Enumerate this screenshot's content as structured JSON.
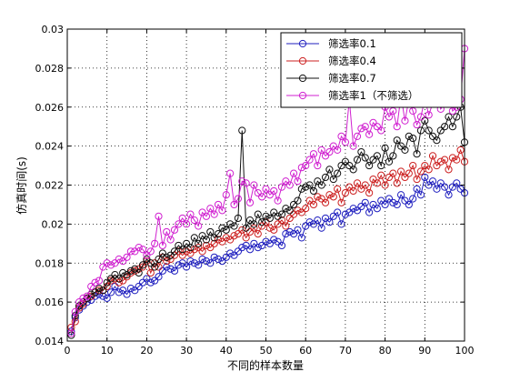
{
  "chart_data": {
    "type": "line",
    "title": "",
    "xlabel": "不同的样本数量",
    "ylabel": "仿真时间(s)",
    "xlim": [
      0,
      100
    ],
    "ylim": [
      0.014,
      0.03
    ],
    "xticks": [
      "0",
      "10",
      "20",
      "30",
      "40",
      "50",
      "60",
      "70",
      "80",
      "90",
      "100"
    ],
    "yticks": [
      "0.014",
      "0.016",
      "0.018",
      "0.02",
      "0.022",
      "0.024",
      "0.026",
      "0.028",
      "0.03"
    ],
    "grid": true,
    "legend_position": "top-right",
    "marker": "open-circle",
    "series": [
      {
        "name": "筛选率0.1",
        "color": "#1f1fbf",
        "values": [
          0.0145,
          0.0152,
          0.0156,
          0.0158,
          0.016,
          0.0161,
          0.0163,
          0.0164,
          0.0163,
          0.0162,
          0.0165,
          0.0168,
          0.0165,
          0.0166,
          0.0164,
          0.0167,
          0.0166,
          0.0168,
          0.017,
          0.0172,
          0.017,
          0.0171,
          0.0173,
          0.0176,
          0.0178,
          0.0177,
          0.0176,
          0.0179,
          0.018,
          0.0178,
          0.0181,
          0.018,
          0.0179,
          0.0182,
          0.0181,
          0.018,
          0.0183,
          0.0182,
          0.0181,
          0.0183,
          0.0185,
          0.0184,
          0.0186,
          0.0188,
          0.0189,
          0.0187,
          0.019,
          0.0188,
          0.0189,
          0.0191,
          0.019,
          0.0192,
          0.0191,
          0.0189,
          0.0195,
          0.0196,
          0.0195,
          0.0197,
          0.0193,
          0.0199,
          0.0201,
          0.02,
          0.0202,
          0.0198,
          0.0203,
          0.0201,
          0.0204,
          0.0206,
          0.02,
          0.0205,
          0.0206,
          0.0208,
          0.0207,
          0.0209,
          0.0211,
          0.0206,
          0.021,
          0.0208,
          0.0212,
          0.021,
          0.0213,
          0.0211,
          0.021,
          0.0215,
          0.0212,
          0.021,
          0.0213,
          0.0218,
          0.0215,
          0.0224,
          0.022,
          0.0222,
          0.0218,
          0.0221,
          0.0219,
          0.0215,
          0.0219,
          0.0221,
          0.0218,
          0.0216
        ]
      },
      {
        "name": "筛选率0.4",
        "color": "#cc2020",
        "values": [
          0.0147,
          0.015,
          0.0157,
          0.0159,
          0.0162,
          0.0163,
          0.0165,
          0.0166,
          0.0166,
          0.0168,
          0.0171,
          0.0172,
          0.017,
          0.0171,
          0.0173,
          0.0175,
          0.0176,
          0.0177,
          0.0178,
          0.0181,
          0.0175,
          0.018,
          0.0178,
          0.0183,
          0.0181,
          0.0182,
          0.0184,
          0.0186,
          0.0184,
          0.0186,
          0.0185,
          0.0187,
          0.0188,
          0.0186,
          0.0189,
          0.0188,
          0.019,
          0.0192,
          0.0191,
          0.0193,
          0.0192,
          0.0194,
          0.0195,
          0.0197,
          0.0193,
          0.0196,
          0.0198,
          0.0195,
          0.0199,
          0.0201,
          0.0198,
          0.0197,
          0.02,
          0.0202,
          0.0199,
          0.0203,
          0.0205,
          0.0207,
          0.0206,
          0.0208,
          0.0212,
          0.021,
          0.0214,
          0.0213,
          0.0211,
          0.0215,
          0.0214,
          0.0218,
          0.0211,
          0.0216,
          0.0219,
          0.0217,
          0.0221,
          0.0218,
          0.022,
          0.0216,
          0.0223,
          0.0221,
          0.0225,
          0.022,
          0.0224,
          0.0226,
          0.0221,
          0.0227,
          0.0224,
          0.0226,
          0.023,
          0.0223,
          0.0227,
          0.023,
          0.0228,
          0.0235,
          0.023,
          0.0232,
          0.0233,
          0.0228,
          0.0234,
          0.0233,
          0.0238,
          0.0232
        ]
      },
      {
        "name": "筛选率0.7",
        "color": "#111111",
        "values": [
          0.0143,
          0.0153,
          0.0158,
          0.016,
          0.0162,
          0.0164,
          0.0165,
          0.0167,
          0.0166,
          0.017,
          0.0172,
          0.0174,
          0.0172,
          0.0175,
          0.0174,
          0.0176,
          0.0177,
          0.0175,
          0.0179,
          0.0182,
          0.018,
          0.0178,
          0.0182,
          0.0185,
          0.0183,
          0.0184,
          0.0186,
          0.0189,
          0.0187,
          0.019,
          0.0188,
          0.0193,
          0.019,
          0.0194,
          0.0192,
          0.0196,
          0.0193,
          0.0195,
          0.0198,
          0.0197,
          0.02,
          0.0199,
          0.0203,
          0.0248,
          0.0198,
          0.0202,
          0.02,
          0.0205,
          0.0201,
          0.0204,
          0.0203,
          0.0206,
          0.0204,
          0.0205,
          0.0208,
          0.0207,
          0.021,
          0.0212,
          0.0218,
          0.0219,
          0.022,
          0.0217,
          0.0222,
          0.022,
          0.0224,
          0.0228,
          0.0223,
          0.0226,
          0.023,
          0.0232,
          0.023,
          0.0228,
          0.0233,
          0.0237,
          0.0234,
          0.023,
          0.0233,
          0.0235,
          0.023,
          0.0239,
          0.0232,
          0.0235,
          0.0243,
          0.024,
          0.0238,
          0.0245,
          0.0244,
          0.0236,
          0.0248,
          0.0253,
          0.0248,
          0.0245,
          0.0243,
          0.0248,
          0.025,
          0.0255,
          0.025,
          0.0255,
          0.026,
          0.0242
        ]
      },
      {
        "name": "筛选率1（不筛选）",
        "color": "#d020d0",
        "values": [
          0.0144,
          0.0155,
          0.016,
          0.0162,
          0.0163,
          0.0168,
          0.017,
          0.0171,
          0.0178,
          0.018,
          0.0179,
          0.018,
          0.0182,
          0.0181,
          0.0183,
          0.0186,
          0.0186,
          0.0188,
          0.0187,
          0.0184,
          0.0186,
          0.019,
          0.0204,
          0.0189,
          0.0196,
          0.0192,
          0.0197,
          0.02,
          0.0203,
          0.02,
          0.0205,
          0.0202,
          0.0199,
          0.0206,
          0.0204,
          0.0208,
          0.0205,
          0.021,
          0.0207,
          0.0215,
          0.0226,
          0.021,
          0.0213,
          0.0222,
          0.0221,
          0.0211,
          0.022,
          0.0216,
          0.0214,
          0.0218,
          0.0215,
          0.0217,
          0.0212,
          0.0219,
          0.0222,
          0.022,
          0.0226,
          0.0222,
          0.0229,
          0.023,
          0.0233,
          0.0236,
          0.023,
          0.0238,
          0.0235,
          0.0237,
          0.024,
          0.0238,
          0.0245,
          0.0242,
          0.0264,
          0.024,
          0.0245,
          0.0249,
          0.025,
          0.0246,
          0.0252,
          0.025,
          0.0248,
          0.026,
          0.0255,
          0.0258,
          0.025,
          0.0266,
          0.0253,
          0.0264,
          0.0258,
          0.0251,
          0.0255,
          0.0264,
          0.0256,
          0.0262,
          0.0268,
          0.0259,
          0.0262,
          0.0266,
          0.0258,
          0.026,
          0.0264,
          0.029
        ]
      }
    ]
  }
}
